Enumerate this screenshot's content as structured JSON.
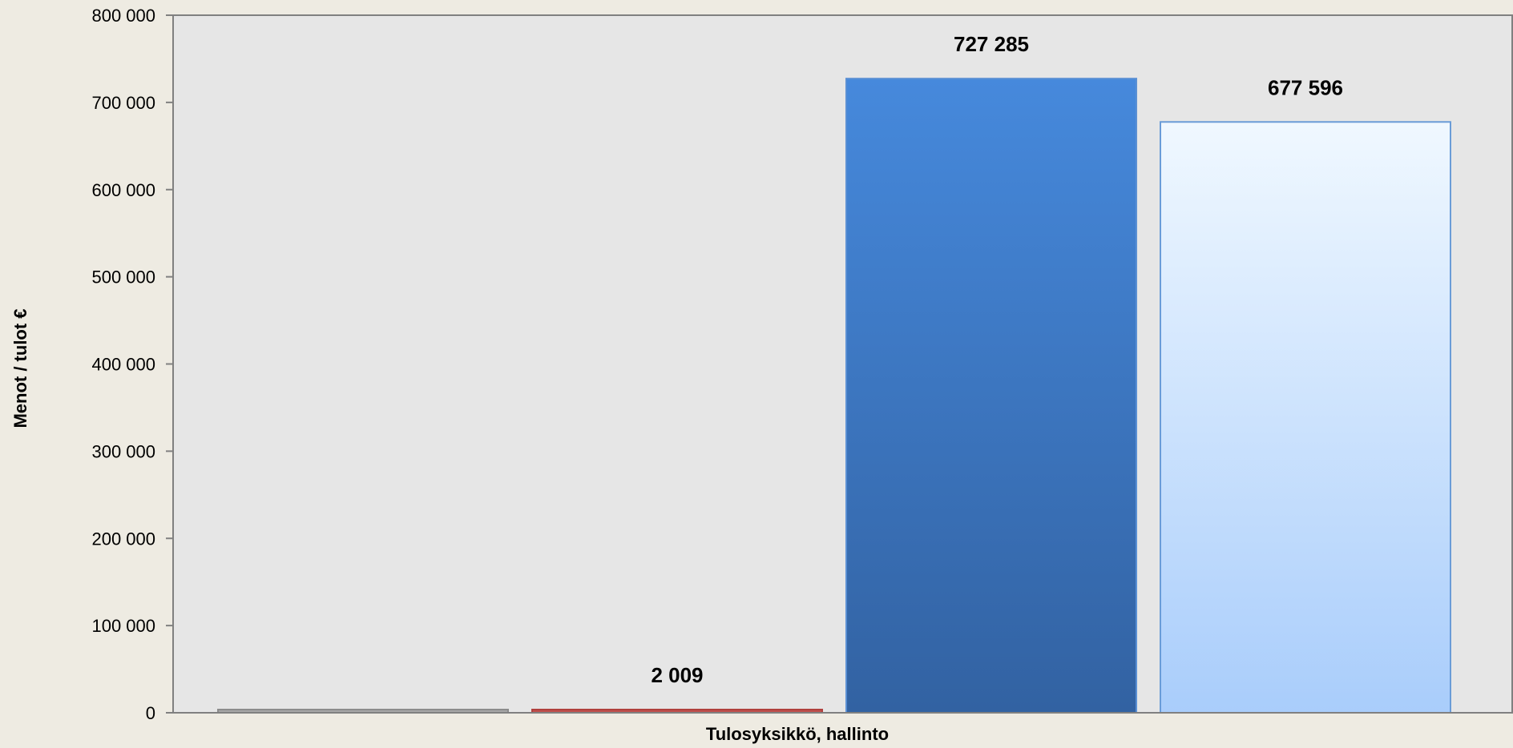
{
  "chart_data": {
    "type": "bar",
    "categories": [
      "Tulosyksikkö, hallinto"
    ],
    "series": [
      {
        "values": [
          0
        ],
        "color": "#7f7f7f",
        "data_label": ""
      },
      {
        "values": [
          2009
        ],
        "color": "#c0504d",
        "data_label": "2 009"
      },
      {
        "values": [
          727285
        ],
        "color": "#3a78c9",
        "data_label": "727 285"
      },
      {
        "values": [
          677596
        ],
        "color": "#d8e8fc",
        "data_label": "677 596"
      }
    ],
    "title": "",
    "xlabel": "Tulosyksikkö, hallinto",
    "ylabel": "Menot / tulot €",
    "ylim": [
      0,
      800000
    ],
    "yticks": [
      0,
      100000,
      200000,
      300000,
      400000,
      500000,
      600000,
      700000,
      800000
    ],
    "ytick_labels": [
      "0",
      "100 000",
      "200 000",
      "300 000",
      "400 000",
      "500 000",
      "600 000",
      "700 000",
      "800 000"
    ],
    "grid": false,
    "legend": "none",
    "plot_background": "#e6e6e6",
    "page_background": "#eeebe2"
  }
}
